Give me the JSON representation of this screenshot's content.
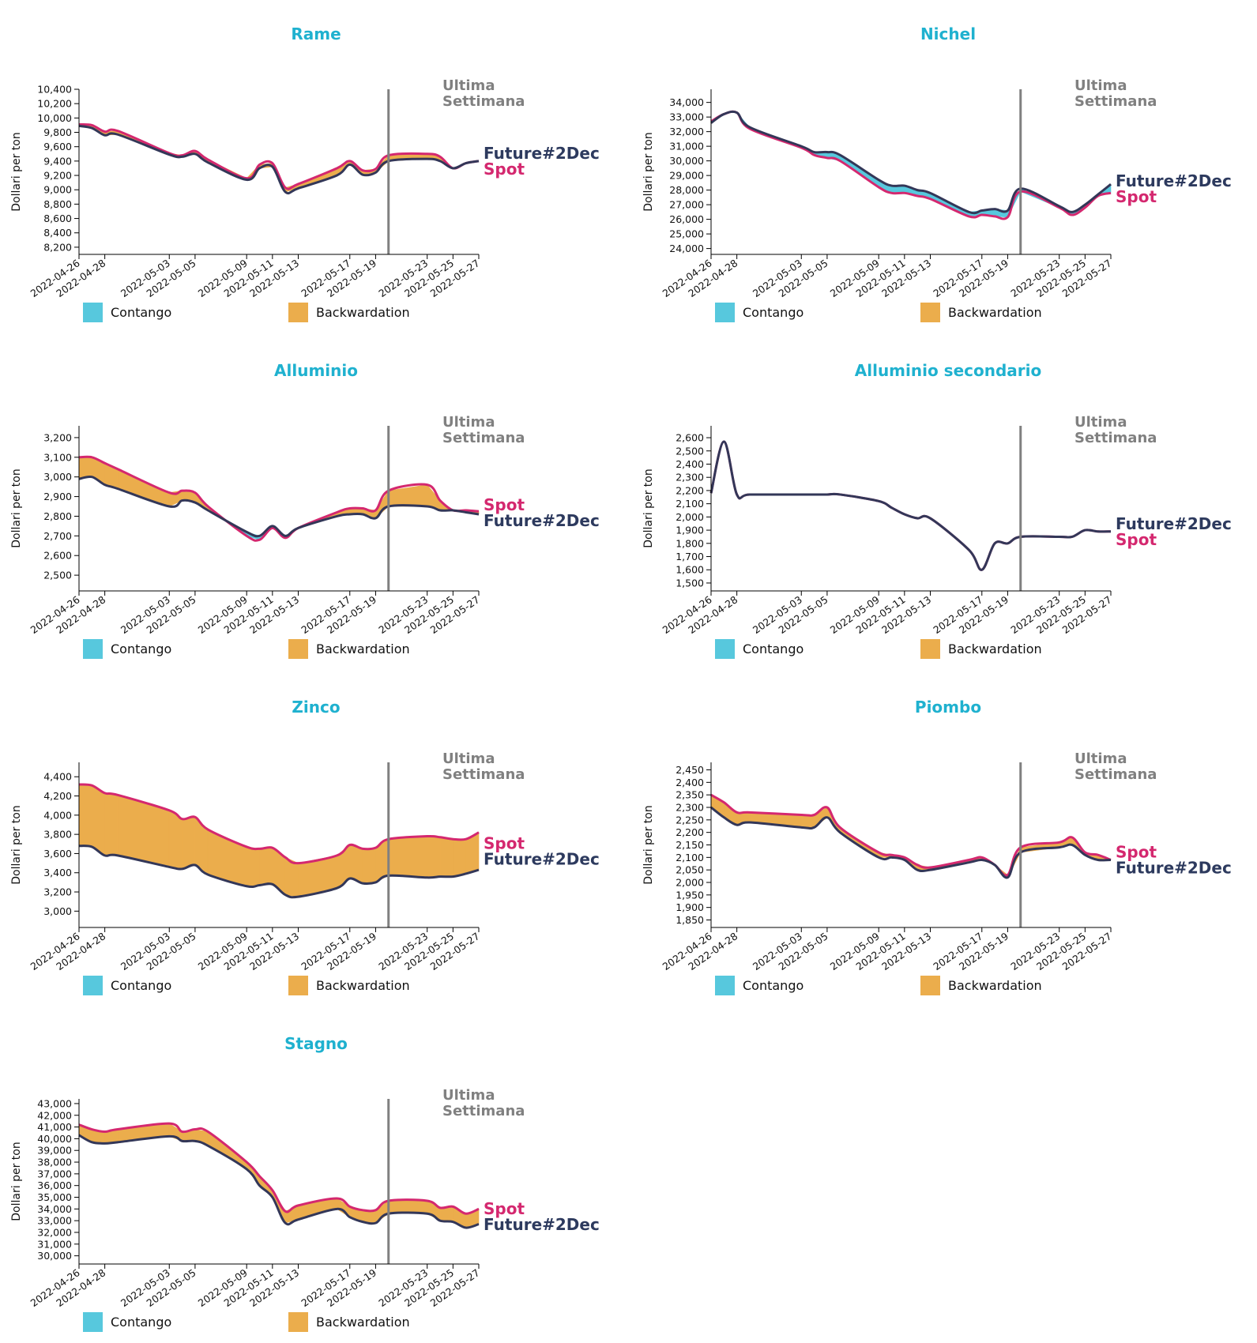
{
  "ylabel": "Dollari per ton",
  "week_label": [
    "Ultima",
    "Settimana"
  ],
  "legend": {
    "contango": "Contango",
    "backwardation": "Backwardation"
  },
  "series_names": {
    "future": "Future#2Dec",
    "spot": "Spot"
  },
  "colors": {
    "title": "#1fb1cf",
    "spot": "#d4286f",
    "future": "#333758",
    "future_label": "#2d3a5e",
    "contango": "#57c8dd",
    "backwardation": "#ebad4c",
    "week_line": "#808080"
  },
  "chart_data": [
    {
      "type": "area",
      "title": "Rame",
      "label_order": [
        "future",
        "spot"
      ],
      "x": [
        "2022-04-26",
        "2022-04-27",
        "2022-04-28",
        "2022-04-29",
        "2022-05-03",
        "2022-05-04",
        "2022-05-05",
        "2022-05-06",
        "2022-05-09",
        "2022-05-10",
        "2022-05-11",
        "2022-05-12",
        "2022-05-13",
        "2022-05-16",
        "2022-05-17",
        "2022-05-18",
        "2022-05-19",
        "2022-05-20",
        "2022-05-23",
        "2022-05-24",
        "2022-05-25",
        "2022-05-26",
        "2022-05-27"
      ],
      "xticks": [
        "2022-04-26",
        "2022-04-28",
        "2022-05-03",
        "2022-05-05",
        "2022-05-09",
        "2022-05-11",
        "2022-05-13",
        "2022-05-17",
        "2022-05-19",
        "2022-05-23",
        "2022-05-25",
        "2022-05-27"
      ],
      "week_start": "2022-05-20",
      "ylim": [
        8100,
        10400
      ],
      "yticks": [
        8200,
        8400,
        8600,
        8800,
        9000,
        9200,
        9400,
        9600,
        9800,
        10000,
        10200,
        10400
      ],
      "spot": [
        9910,
        9900,
        9810,
        9820,
        9510,
        9480,
        9540,
        9420,
        9160,
        9350,
        9370,
        9030,
        9080,
        9300,
        9400,
        9270,
        9290,
        9480,
        9500,
        9460,
        9300,
        9370,
        9400
      ],
      "future": [
        9890,
        9860,
        9760,
        9770,
        9490,
        9460,
        9500,
        9380,
        9140,
        9300,
        9320,
        8970,
        9020,
        9200,
        9350,
        9210,
        9240,
        9400,
        9430,
        9400,
        9300,
        9370,
        9400
      ]
    },
    {
      "type": "area",
      "title": "Nichel",
      "label_order": [
        "future",
        "spot"
      ],
      "x": [
        "2022-04-26",
        "2022-04-27",
        "2022-04-28",
        "2022-04-29",
        "2022-05-03",
        "2022-05-04",
        "2022-05-05",
        "2022-05-06",
        "2022-05-09",
        "2022-05-10",
        "2022-05-11",
        "2022-05-12",
        "2022-05-13",
        "2022-05-16",
        "2022-05-17",
        "2022-05-18",
        "2022-05-19",
        "2022-05-20",
        "2022-05-23",
        "2022-05-24",
        "2022-05-25",
        "2022-05-26",
        "2022-05-27"
      ],
      "xticks": [
        "2022-04-26",
        "2022-04-28",
        "2022-05-03",
        "2022-05-05",
        "2022-05-09",
        "2022-05-11",
        "2022-05-13",
        "2022-05-17",
        "2022-05-19",
        "2022-05-23",
        "2022-05-25",
        "2022-05-27"
      ],
      "week_start": "2022-05-20",
      "ylim": [
        23600,
        34900
      ],
      "yticks": [
        24000,
        25000,
        26000,
        27000,
        28000,
        29000,
        30000,
        31000,
        32000,
        33000,
        34000
      ],
      "spot": [
        32700,
        33200,
        33300,
        32200,
        30900,
        30400,
        30200,
        30000,
        28200,
        27800,
        27800,
        27600,
        27400,
        26200,
        26300,
        26200,
        26150,
        27900,
        26800,
        26300,
        26800,
        27600,
        27800
      ],
      "future": [
        32600,
        33200,
        33300,
        32300,
        31000,
        30600,
        30600,
        30400,
        28700,
        28300,
        28300,
        28000,
        27800,
        26500,
        26600,
        26700,
        26600,
        28100,
        26900,
        26500,
        27000,
        27700,
        28400
      ]
    },
    {
      "type": "area",
      "title": "Alluminio",
      "label_order": [
        "spot",
        "future"
      ],
      "x": [
        "2022-04-26",
        "2022-04-27",
        "2022-04-28",
        "2022-04-29",
        "2022-05-03",
        "2022-05-04",
        "2022-05-05",
        "2022-05-06",
        "2022-05-09",
        "2022-05-10",
        "2022-05-11",
        "2022-05-12",
        "2022-05-13",
        "2022-05-16",
        "2022-05-17",
        "2022-05-18",
        "2022-05-19",
        "2022-05-20",
        "2022-05-23",
        "2022-05-24",
        "2022-05-25",
        "2022-05-26",
        "2022-05-27"
      ],
      "xticks": [
        "2022-04-26",
        "2022-04-28",
        "2022-05-03",
        "2022-05-05",
        "2022-05-09",
        "2022-05-11",
        "2022-05-13",
        "2022-05-17",
        "2022-05-19",
        "2022-05-23",
        "2022-05-25",
        "2022-05-27"
      ],
      "week_start": "2022-05-20",
      "ylim": [
        2420,
        3260
      ],
      "yticks": [
        2500,
        2600,
        2700,
        2800,
        2900,
        3000,
        3100,
        3200
      ],
      "spot": [
        3100,
        3100,
        3070,
        3040,
        2920,
        2930,
        2920,
        2850,
        2700,
        2680,
        2740,
        2690,
        2740,
        2820,
        2840,
        2840,
        2830,
        2930,
        2960,
        2880,
        2830,
        2830,
        2825
      ],
      "future": [
        2990,
        3000,
        2960,
        2940,
        2850,
        2880,
        2870,
        2830,
        2720,
        2700,
        2750,
        2700,
        2740,
        2800,
        2810,
        2810,
        2790,
        2850,
        2850,
        2830,
        2830,
        2820,
        2810
      ]
    },
    {
      "type": "area",
      "title": "Alluminio secondario",
      "label_order": [
        "future",
        "spot"
      ],
      "x": [
        "2022-04-26",
        "2022-04-27",
        "2022-04-28",
        "2022-04-29",
        "2022-05-03",
        "2022-05-04",
        "2022-05-05",
        "2022-05-06",
        "2022-05-09",
        "2022-05-10",
        "2022-05-11",
        "2022-05-12",
        "2022-05-13",
        "2022-05-16",
        "2022-05-17",
        "2022-05-18",
        "2022-05-19",
        "2022-05-20",
        "2022-05-23",
        "2022-05-24",
        "2022-05-25",
        "2022-05-26",
        "2022-05-27"
      ],
      "xticks": [
        "2022-04-26",
        "2022-04-28",
        "2022-05-03",
        "2022-05-05",
        "2022-05-09",
        "2022-05-11",
        "2022-05-13",
        "2022-05-17",
        "2022-05-19",
        "2022-05-23",
        "2022-05-25",
        "2022-05-27"
      ],
      "week_start": "2022-05-20",
      "ylim": [
        1440,
        2690
      ],
      "yticks": [
        1500,
        1600,
        1700,
        1800,
        1900,
        2000,
        2100,
        2200,
        2300,
        2400,
        2500,
        2600
      ],
      "spot": [
        2180,
        2570,
        2170,
        2170,
        2170,
        2170,
        2170,
        2170,
        2120,
        2070,
        2020,
        1990,
        1990,
        1750,
        1600,
        1800,
        1800,
        1850,
        1850,
        1850,
        1900,
        1890,
        1890
      ],
      "future": [
        2180,
        2570,
        2170,
        2170,
        2170,
        2170,
        2170,
        2170,
        2120,
        2070,
        2020,
        1990,
        1990,
        1750,
        1600,
        1800,
        1800,
        1850,
        1850,
        1850,
        1900,
        1890,
        1890
      ]
    },
    {
      "type": "area",
      "title": "Zinco",
      "label_order": [
        "spot",
        "future"
      ],
      "x": [
        "2022-04-26",
        "2022-04-27",
        "2022-04-28",
        "2022-04-29",
        "2022-05-03",
        "2022-05-04",
        "2022-05-05",
        "2022-05-06",
        "2022-05-09",
        "2022-05-10",
        "2022-05-11",
        "2022-05-12",
        "2022-05-13",
        "2022-05-16",
        "2022-05-17",
        "2022-05-18",
        "2022-05-19",
        "2022-05-20",
        "2022-05-23",
        "2022-05-24",
        "2022-05-25",
        "2022-05-26",
        "2022-05-27"
      ],
      "xticks": [
        "2022-04-26",
        "2022-04-28",
        "2022-05-03",
        "2022-05-05",
        "2022-05-09",
        "2022-05-11",
        "2022-05-13",
        "2022-05-17",
        "2022-05-19",
        "2022-05-23",
        "2022-05-25",
        "2022-05-27"
      ],
      "week_start": "2022-05-20",
      "ylim": [
        2830,
        4550
      ],
      "yticks": [
        3000,
        3200,
        3400,
        3600,
        3800,
        4000,
        4200,
        4400
      ],
      "spot": [
        4320,
        4310,
        4230,
        4210,
        4050,
        3960,
        3980,
        3850,
        3670,
        3650,
        3660,
        3560,
        3500,
        3580,
        3690,
        3650,
        3660,
        3750,
        3780,
        3770,
        3750,
        3750,
        3820
      ],
      "future": [
        3680,
        3670,
        3580,
        3580,
        3460,
        3440,
        3480,
        3380,
        3260,
        3270,
        3280,
        3170,
        3150,
        3240,
        3340,
        3290,
        3300,
        3370,
        3350,
        3360,
        3360,
        3390,
        3430
      ]
    },
    {
      "type": "area",
      "title": "Piombo",
      "label_order": [
        "spot",
        "future"
      ],
      "x": [
        "2022-04-26",
        "2022-04-27",
        "2022-04-28",
        "2022-04-29",
        "2022-05-03",
        "2022-05-04",
        "2022-05-05",
        "2022-05-06",
        "2022-05-09",
        "2022-05-10",
        "2022-05-11",
        "2022-05-12",
        "2022-05-13",
        "2022-05-16",
        "2022-05-17",
        "2022-05-18",
        "2022-05-19",
        "2022-05-20",
        "2022-05-23",
        "2022-05-24",
        "2022-05-25",
        "2022-05-26",
        "2022-05-27"
      ],
      "xticks": [
        "2022-04-26",
        "2022-04-28",
        "2022-05-03",
        "2022-05-05",
        "2022-05-09",
        "2022-05-11",
        "2022-05-13",
        "2022-05-17",
        "2022-05-19",
        "2022-05-23",
        "2022-05-25",
        "2022-05-27"
      ],
      "week_start": "2022-05-20",
      "ylim": [
        1820,
        2480
      ],
      "yticks": [
        1850,
        1900,
        1950,
        2000,
        2050,
        2100,
        2150,
        2200,
        2250,
        2300,
        2350,
        2400,
        2450
      ],
      "spot": [
        2350,
        2320,
        2280,
        2280,
        2270,
        2270,
        2300,
        2220,
        2120,
        2110,
        2100,
        2070,
        2060,
        2090,
        2100,
        2070,
        2030,
        2140,
        2160,
        2180,
        2120,
        2110,
        2090
      ],
      "future": [
        2300,
        2260,
        2230,
        2240,
        2220,
        2220,
        2260,
        2200,
        2100,
        2100,
        2090,
        2050,
        2050,
        2080,
        2090,
        2070,
        2020,
        2120,
        2140,
        2150,
        2110,
        2090,
        2090
      ]
    },
    {
      "type": "area",
      "title": "Stagno",
      "label_order": [
        "spot",
        "future"
      ],
      "x": [
        "2022-04-26",
        "2022-04-27",
        "2022-04-28",
        "2022-04-29",
        "2022-05-03",
        "2022-05-04",
        "2022-05-05",
        "2022-05-06",
        "2022-05-09",
        "2022-05-10",
        "2022-05-11",
        "2022-05-12",
        "2022-05-13",
        "2022-05-16",
        "2022-05-17",
        "2022-05-18",
        "2022-05-19",
        "2022-05-20",
        "2022-05-23",
        "2022-05-24",
        "2022-05-25",
        "2022-05-26",
        "2022-05-27"
      ],
      "xticks": [
        "2022-04-26",
        "2022-04-28",
        "2022-05-03",
        "2022-05-05",
        "2022-05-09",
        "2022-05-11",
        "2022-05-13",
        "2022-05-17",
        "2022-05-19",
        "2022-05-23",
        "2022-05-25",
        "2022-05-27"
      ],
      "week_start": "2022-05-20",
      "ylim": [
        29300,
        43400
      ],
      "yticks": [
        30000,
        31000,
        32000,
        33000,
        34000,
        35000,
        36000,
        37000,
        38000,
        39000,
        40000,
        41000,
        42000,
        43000
      ],
      "spot": [
        41200,
        40800,
        40600,
        40800,
        41300,
        40600,
        40800,
        40600,
        38000,
        36800,
        35600,
        33800,
        34300,
        34900,
        34200,
        33900,
        33900,
        34700,
        34700,
        34100,
        34200,
        33600,
        34000
      ],
      "future": [
        40300,
        39700,
        39600,
        39700,
        40200,
        39800,
        39800,
        39400,
        37400,
        36000,
        35000,
        32800,
        33100,
        34000,
        33300,
        32900,
        32800,
        33600,
        33600,
        33000,
        32900,
        32400,
        32700
      ]
    }
  ]
}
